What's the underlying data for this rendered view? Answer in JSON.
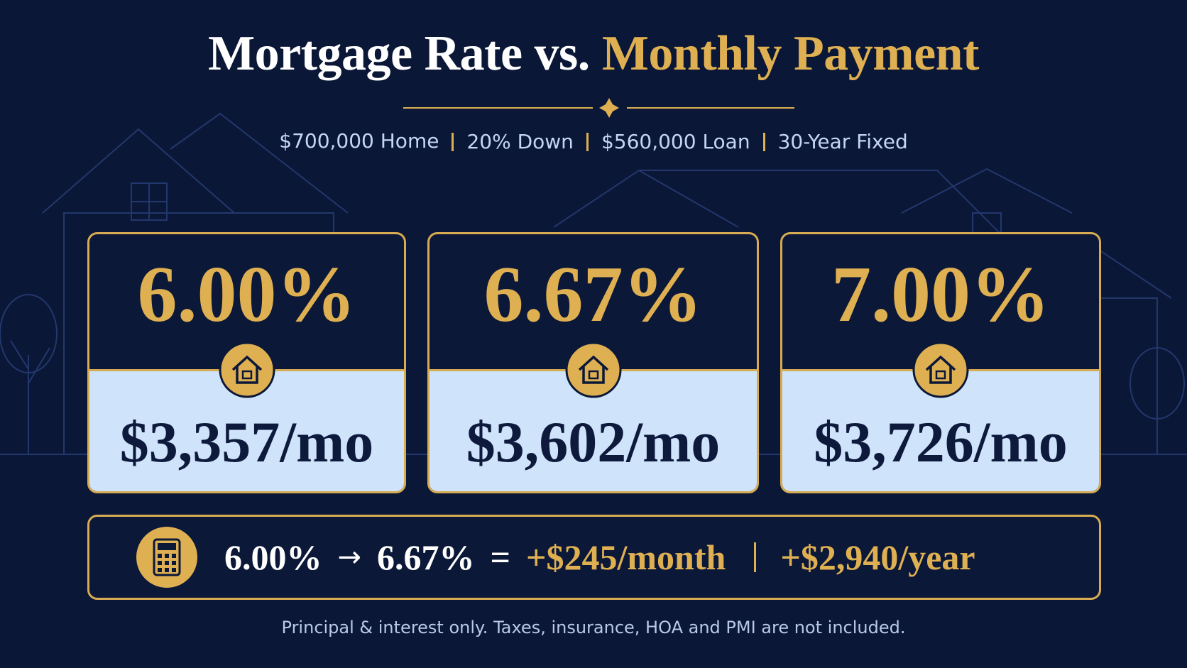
{
  "title": {
    "lead": "Mortgage Rate vs.",
    "accent": "Monthly Payment"
  },
  "subtitle": [
    "$700,000 Home",
    "20% Down",
    "$560,000 Loan",
    "30-Year Fixed"
  ],
  "cards": [
    {
      "rate": "6.00%",
      "payment": "$3,357/mo"
    },
    {
      "rate": "6.67%",
      "payment": "$3,602/mo"
    },
    {
      "rate": "7.00%",
      "payment": "$3,726/mo"
    }
  ],
  "comparison": {
    "from": "6.00%",
    "arrow": "→",
    "to": "6.67%",
    "equals": "=",
    "monthly": "+$245/month",
    "yearly": "+$2,940/year"
  },
  "footnote": "Principal & interest only. Taxes, insurance, HOA and PMI are not included."
}
